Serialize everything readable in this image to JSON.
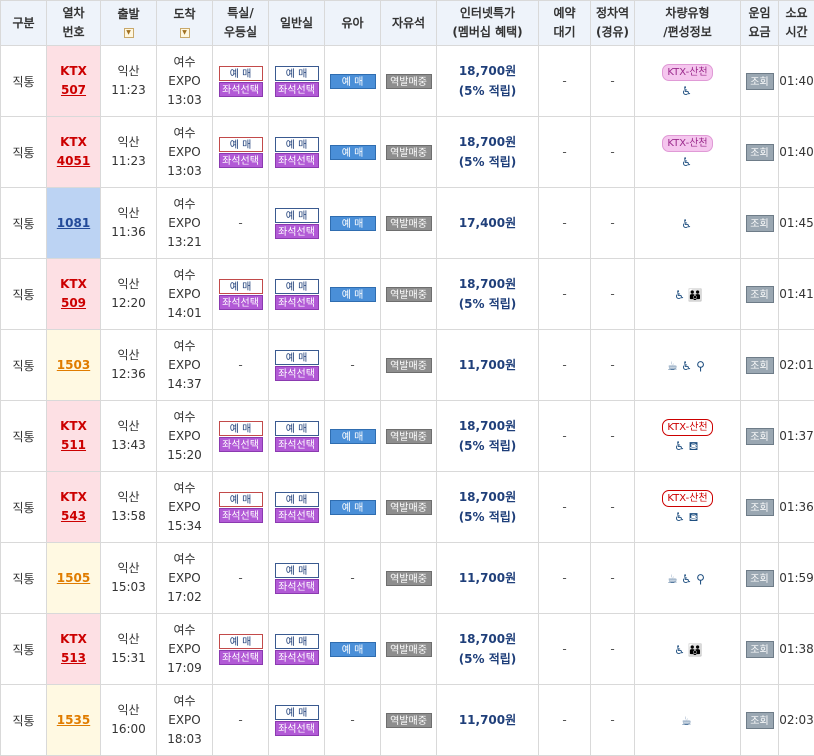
{
  "headers": {
    "type": [
      "구분"
    ],
    "train_no": [
      "열차",
      "번호"
    ],
    "departure": [
      "출발"
    ],
    "arrival": [
      "도착"
    ],
    "special": [
      "특실/",
      "우등실"
    ],
    "general": [
      "일반실"
    ],
    "infant": [
      "유아"
    ],
    "standing": [
      "자유석"
    ],
    "internet_price": [
      "인터넷특가",
      "(멤버십 혜택)"
    ],
    "reservation_wait": [
      "예약",
      "대기"
    ],
    "stop": [
      "정차역",
      "(경유)"
    ],
    "vehicle": [
      "차량유형",
      "/편성정보"
    ],
    "fare": [
      "운임",
      "요금"
    ],
    "duration": [
      "소요",
      "시간"
    ]
  },
  "labels": {
    "reserve": "예 매",
    "seat_select": "좌석선택",
    "station_sale": "역발매중",
    "inquiry": "조회",
    "dash": "-",
    "ktx_prefix": "KTX"
  },
  "rows": [
    {
      "type": "직통",
      "is_ktx": true,
      "no": "507",
      "dep_station": "익산",
      "dep_time": "11:23",
      "arr_station": "여수",
      "arr_sub": "EXPO",
      "arr_time": "13:03",
      "special": "reserve",
      "general": "reserve",
      "infant": "reserve",
      "standing": "sale",
      "price": "18,700원",
      "price_note": "(5% 적립)",
      "wait": "-",
      "stop": "-",
      "vehicle_badge": "KTX-산천",
      "badge_style": "pink",
      "icons": "wheel",
      "duration": "01:40"
    },
    {
      "type": "직통",
      "is_ktx": true,
      "no": "4051",
      "dep_station": "익산",
      "dep_time": "11:23",
      "arr_station": "여수",
      "arr_sub": "EXPO",
      "arr_time": "13:03",
      "special": "reserve",
      "general": "reserve",
      "infant": "reserve",
      "standing": "sale",
      "price": "18,700원",
      "price_note": "(5% 적립)",
      "wait": "-",
      "stop": "-",
      "vehicle_badge": "KTX-산천",
      "badge_style": "pink",
      "icons": "wheel",
      "duration": "01:40"
    },
    {
      "type": "직통",
      "is_ktx": false,
      "no": "1081",
      "color": "blue",
      "dep_station": "익산",
      "dep_time": "11:36",
      "arr_station": "여수",
      "arr_sub": "EXPO",
      "arr_time": "13:21",
      "special": "-",
      "general": "reserve",
      "infant": "reserve",
      "standing": "sale",
      "price": "17,400원",
      "price_note": "",
      "wait": "-",
      "stop": "-",
      "vehicle_badge": "",
      "badge_style": "",
      "icons": "wheel",
      "duration": "01:45"
    },
    {
      "type": "직통",
      "is_ktx": true,
      "no": "509",
      "dep_station": "익산",
      "dep_time": "12:20",
      "arr_station": "여수",
      "arr_sub": "EXPO",
      "arr_time": "14:01",
      "special": "reserve",
      "general": "reserve",
      "infant": "reserve",
      "standing": "sale",
      "price": "18,700원",
      "price_note": "(5% 적립)",
      "wait": "-",
      "stop": "-",
      "vehicle_badge": "",
      "badge_style": "",
      "icons": "wheel-family",
      "duration": "01:41"
    },
    {
      "type": "직통",
      "is_ktx": false,
      "no": "1503",
      "color": "orange",
      "dep_station": "익산",
      "dep_time": "12:36",
      "arr_station": "여수",
      "arr_sub": "EXPO",
      "arr_time": "14:37",
      "special": "-",
      "general": "reserve",
      "infant": "-",
      "standing": "sale",
      "price": "11,700원",
      "price_note": "",
      "wait": "-",
      "stop": "-",
      "vehicle_badge": "",
      "badge_style": "",
      "icons": "cafe-wheel-bike",
      "duration": "02:01"
    },
    {
      "type": "직통",
      "is_ktx": true,
      "no": "511",
      "dep_station": "익산",
      "dep_time": "13:43",
      "arr_station": "여수",
      "arr_sub": "EXPO",
      "arr_time": "15:20",
      "special": "reserve",
      "general": "reserve",
      "infant": "reserve",
      "standing": "sale",
      "price": "18,700원",
      "price_note": "(5% 적립)",
      "wait": "-",
      "stop": "-",
      "vehicle_badge": "KTX-산천",
      "badge_style": "red",
      "icons": "wheel-meeting",
      "duration": "01:37"
    },
    {
      "type": "직통",
      "is_ktx": true,
      "no": "543",
      "dep_station": "익산",
      "dep_time": "13:58",
      "arr_station": "여수",
      "arr_sub": "EXPO",
      "arr_time": "15:34",
      "special": "reserve",
      "general": "reserve",
      "infant": "reserve",
      "standing": "sale",
      "price": "18,700원",
      "price_note": "(5% 적립)",
      "wait": "-",
      "stop": "-",
      "vehicle_badge": "KTX-산천",
      "badge_style": "red",
      "icons": "wheel-meeting",
      "duration": "01:36"
    },
    {
      "type": "직통",
      "is_ktx": false,
      "no": "1505",
      "color": "orange",
      "dep_station": "익산",
      "dep_time": "15:03",
      "arr_station": "여수",
      "arr_sub": "EXPO",
      "arr_time": "17:02",
      "special": "-",
      "general": "reserve",
      "infant": "-",
      "standing": "sale",
      "price": "11,700원",
      "price_note": "",
      "wait": "-",
      "stop": "-",
      "vehicle_badge": "",
      "badge_style": "",
      "icons": "cafe-wheel-bike",
      "duration": "01:59"
    },
    {
      "type": "직통",
      "is_ktx": true,
      "no": "513",
      "dep_station": "익산",
      "dep_time": "15:31",
      "arr_station": "여수",
      "arr_sub": "EXPO",
      "arr_time": "17:09",
      "special": "reserve",
      "general": "reserve",
      "infant": "reserve",
      "standing": "sale",
      "price": "18,700원",
      "price_note": "(5% 적립)",
      "wait": "-",
      "stop": "-",
      "vehicle_badge": "",
      "badge_style": "",
      "icons": "wheel-family",
      "duration": "01:38"
    },
    {
      "type": "직통",
      "is_ktx": false,
      "no": "1535",
      "color": "orange",
      "dep_station": "익산",
      "dep_time": "16:00",
      "arr_station": "여수",
      "arr_sub": "EXPO",
      "arr_time": "18:03",
      "special": "-",
      "general": "reserve",
      "infant": "-",
      "standing": "sale",
      "price": "11,700원",
      "price_note": "",
      "wait": "-",
      "stop": "-",
      "vehicle_badge": "",
      "badge_style": "",
      "icons": "cafe",
      "duration": "02:03"
    }
  ],
  "icon_names": {
    "wheel": [
      "wheelchair-icon"
    ],
    "wheel-family": [
      "wheelchair-icon",
      "family-icon"
    ],
    "wheel-meeting": [
      "wheelchair-icon",
      "meeting-room-icon"
    ],
    "cafe-wheel-bike": [
      "cafe-icon",
      "wheelchair-icon",
      "bicycle-icon"
    ],
    "cafe": [
      "cafe-icon"
    ]
  },
  "icon_glyphs": {
    "wheelchair-icon": "♿",
    "family-icon": "👪",
    "meeting-room-icon": "⛾",
    "cafe-icon": "☕",
    "bicycle-icon": "⚲"
  },
  "colors": {
    "ktx_red": "#cc0000",
    "header_bg": "#eef3fa",
    "seat_button": "#b25ad6",
    "reserve_fill": "#4a8fd8"
  }
}
